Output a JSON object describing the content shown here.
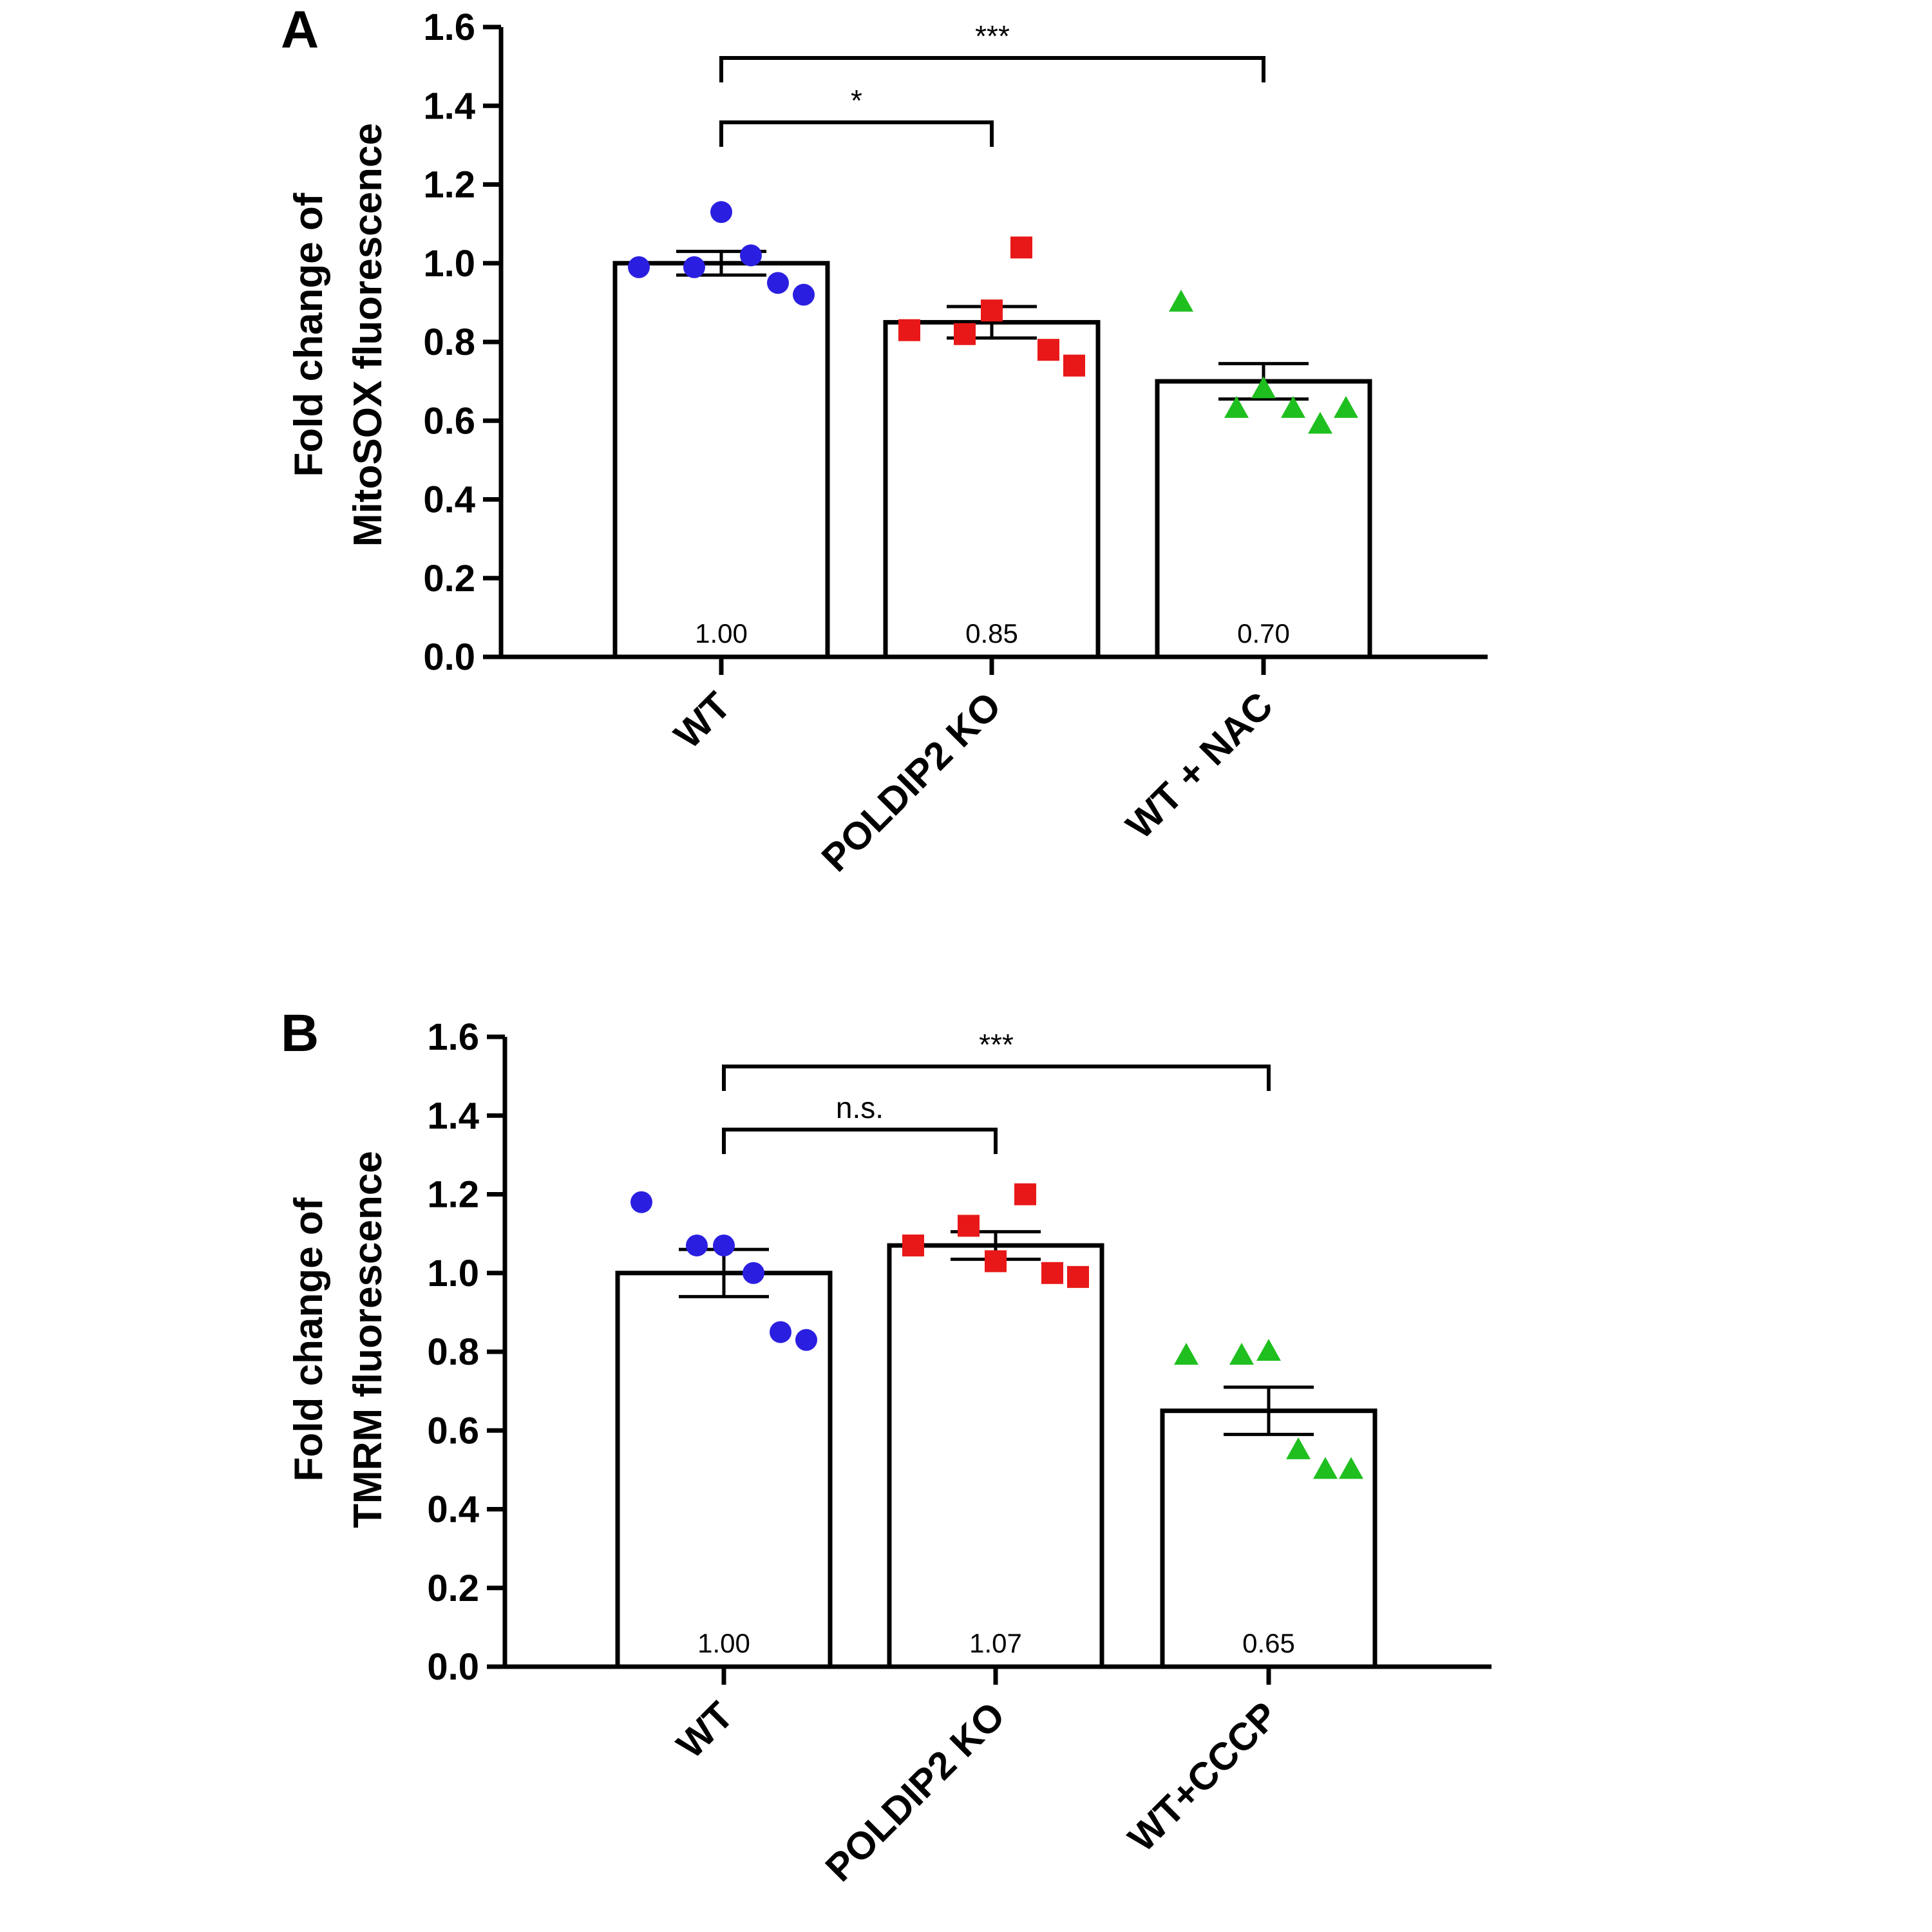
{
  "chart_data": [
    {
      "panel": "A",
      "type": "bar",
      "ylabel_lines": [
        "Fold change of",
        "MitoSOX fluorescence"
      ],
      "ylim": [
        0,
        1.6
      ],
      "yticks": [
        "0.0",
        "0.2",
        "0.4",
        "0.6",
        "0.8",
        "1.0",
        "1.2",
        "1.4",
        "1.6"
      ],
      "categories": [
        "WT",
        "POLDIP2 KO",
        "WT + NAC"
      ],
      "values": [
        1.0,
        0.85,
        0.7
      ],
      "value_labels": [
        "1.00",
        "0.85",
        "0.70"
      ],
      "sem": [
        0.03,
        0.04,
        0.045
      ],
      "points": [
        [
          0.99,
          0.99,
          1.13,
          1.02,
          0.95,
          0.92
        ],
        [
          0.83,
          0.82,
          0.88,
          1.04,
          0.78,
          0.74
        ],
        [
          0.9,
          0.63,
          0.68,
          0.63,
          0.59,
          0.63
        ]
      ],
      "markers": [
        "circle",
        "square",
        "triangle"
      ],
      "colors": [
        "#2a1fe0",
        "#e81818",
        "#1fbf1f"
      ],
      "significance": [
        {
          "from": 0,
          "to": 1,
          "label": "*"
        },
        {
          "from": 0,
          "to": 2,
          "label": "***"
        }
      ]
    },
    {
      "panel": "B",
      "type": "bar",
      "ylabel_lines": [
        "Fold change of",
        "TMRM fluorescence"
      ],
      "ylim": [
        0,
        1.6
      ],
      "yticks": [
        "0.0",
        "0.2",
        "0.4",
        "0.6",
        "0.8",
        "1.0",
        "1.2",
        "1.4",
        "1.6"
      ],
      "categories": [
        "WT",
        "POLDIP2 KO",
        "WT+CCCP"
      ],
      "values": [
        1.0,
        1.07,
        0.65
      ],
      "value_labels": [
        "1.00",
        "1.07",
        "0.65"
      ],
      "sem": [
        0.06,
        0.035,
        0.06
      ],
      "points": [
        [
          1.18,
          1.07,
          1.07,
          1.0,
          0.85,
          0.83
        ],
        [
          1.07,
          1.12,
          1.03,
          1.2,
          1.0,
          0.99
        ],
        [
          0.79,
          0.79,
          0.8,
          0.55,
          0.5,
          0.5
        ]
      ],
      "markers": [
        "circle",
        "square",
        "triangle"
      ],
      "colors": [
        "#2a1fe0",
        "#e81818",
        "#1fbf1f"
      ],
      "significance": [
        {
          "from": 0,
          "to": 1,
          "label": "n.s."
        },
        {
          "from": 0,
          "to": 2,
          "label": "***"
        }
      ]
    }
  ]
}
